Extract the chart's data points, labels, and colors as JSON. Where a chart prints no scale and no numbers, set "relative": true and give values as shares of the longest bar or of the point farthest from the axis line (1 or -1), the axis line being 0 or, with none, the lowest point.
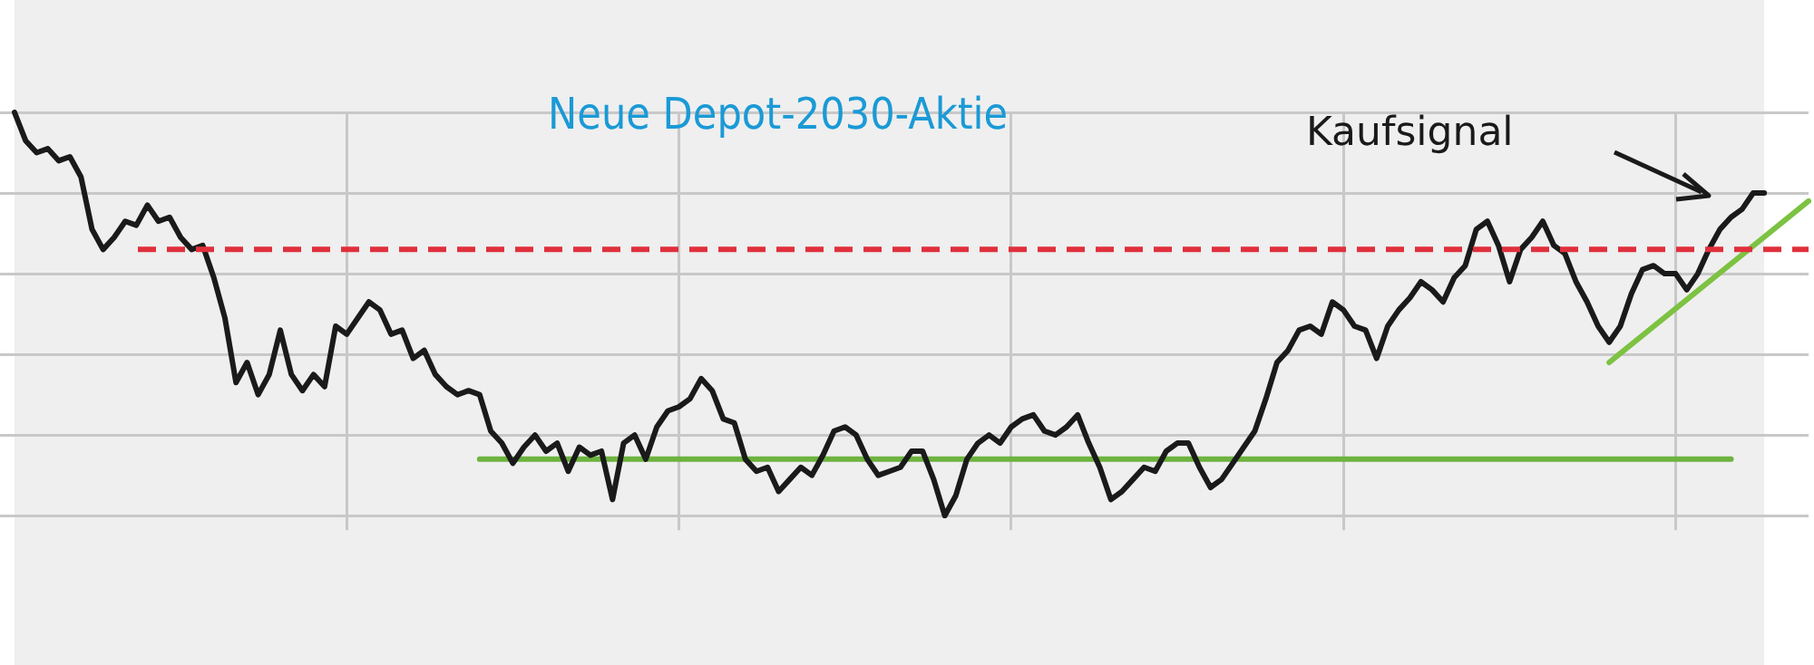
{
  "chart_data": {
    "type": "line",
    "title": "Neue Depot-2030-Aktie",
    "relative": true,
    "grid": true,
    "legend": false,
    "marker": "none",
    "annotations": [
      "Kaufsignal"
    ],
    "categories": [
      null,
      null,
      null,
      null,
      null,
      null,
      null,
      null,
      null,
      null,
      null,
      null,
      null,
      null,
      null,
      null,
      null,
      null,
      null,
      null,
      null,
      null,
      null,
      null,
      null,
      null,
      null,
      null,
      null,
      null,
      null,
      null,
      null,
      null,
      null,
      null,
      null,
      null,
      null,
      null,
      null,
      null,
      null,
      null,
      null,
      null,
      null,
      null,
      null,
      null,
      null,
      null,
      null,
      null,
      null,
      null,
      null,
      null,
      null,
      null,
      null,
      null,
      null,
      null,
      null,
      null,
      null,
      null,
      null,
      null,
      null,
      null,
      null,
      null,
      null,
      null,
      null,
      null,
      null,
      null,
      null,
      null,
      null,
      null,
      null,
      null,
      null,
      null,
      null,
      null,
      null,
      null,
      null,
      null,
      null,
      null,
      null,
      null,
      null,
      null,
      null,
      null,
      null,
      null,
      null,
      null,
      null,
      null,
      null,
      null,
      null,
      null,
      null,
      null,
      null,
      null,
      null,
      null,
      null,
      null,
      null,
      null,
      null,
      null,
      null,
      null,
      null,
      null,
      null,
      null,
      null,
      null,
      null,
      null,
      null,
      null,
      null,
      null,
      null,
      null,
      null,
      null,
      null,
      null,
      null,
      null,
      null,
      null,
      null,
      null,
      null,
      null,
      null,
      null,
      null,
      null,
      null,
      null,
      null,
      null,
      null,
      null,
      null
    ],
    "ref_lines": [
      {
        "axis": "y",
        "value": 0.66,
        "color": "#e0303c",
        "line_style": "dashed"
      }
    ],
    "series": [
      {
        "color": "#1a1a1a",
        "values": [
          1.0,
          0.93,
          0.9,
          0.91,
          0.88,
          0.89,
          0.84,
          0.71,
          0.66,
          0.69,
          0.73,
          0.72,
          0.77,
          0.73,
          0.74,
          0.69,
          0.66,
          0.67,
          0.59,
          0.49,
          0.33,
          0.38,
          0.3,
          0.35,
          0.46,
          0.35,
          0.31,
          0.35,
          0.32,
          0.47,
          0.45,
          0.49,
          0.53,
          0.51,
          0.45,
          0.46,
          0.39,
          0.41,
          0.35,
          0.32,
          0.3,
          0.31,
          0.3,
          0.21,
          0.18,
          0.13,
          0.17,
          0.2,
          0.16,
          0.18,
          0.11,
          0.17,
          0.15,
          0.16,
          0.04,
          0.18,
          0.2,
          0.14,
          0.22,
          0.26,
          0.27,
          0.29,
          0.34,
          0.31,
          0.24,
          0.23,
          0.14,
          0.11,
          0.12,
          0.06,
          0.09,
          0.12,
          0.1,
          0.15,
          0.21,
          0.22,
          0.2,
          0.14,
          0.1,
          0.11,
          0.12,
          0.16,
          0.16,
          0.09,
          0.0,
          0.05,
          0.14,
          0.18,
          0.2,
          0.18,
          0.22,
          0.24,
          0.25,
          0.21,
          0.2,
          0.22,
          0.25,
          0.18,
          0.12,
          0.04,
          0.06,
          0.09,
          0.12,
          0.11,
          0.16,
          0.18,
          0.18,
          0.12,
          0.07,
          0.09,
          0.13,
          0.17,
          0.21,
          0.29,
          0.38,
          0.41,
          0.46,
          0.47,
          0.45,
          0.53,
          0.51,
          0.47,
          0.46,
          0.39,
          0.47,
          0.51,
          0.54,
          0.58,
          0.56,
          0.53,
          0.59,
          0.62,
          0.71,
          0.73,
          0.67,
          0.58,
          0.66,
          0.69,
          0.73,
          0.67,
          0.65,
          0.58,
          0.53,
          0.47,
          0.43,
          0.47,
          0.55,
          0.61,
          0.62,
          0.6,
          0.6,
          0.56,
          0.6,
          0.66,
          0.71,
          0.74,
          0.76,
          0.8,
          0.8,
          null,
          null,
          null,
          null
        ]
      },
      {
        "color": "#6db33f",
        "values": [
          null,
          null,
          null,
          null,
          null,
          null,
          null,
          null,
          null,
          null,
          null,
          null,
          null,
          null,
          null,
          null,
          null,
          null,
          null,
          null,
          null,
          null,
          null,
          null,
          null,
          null,
          null,
          null,
          null,
          null,
          null,
          null,
          null,
          null,
          null,
          null,
          null,
          null,
          null,
          null,
          null,
          null,
          0.14,
          null,
          null,
          null,
          null,
          null,
          null,
          null,
          null,
          null,
          null,
          null,
          null,
          null,
          null,
          null,
          null,
          null,
          null,
          null,
          null,
          null,
          null,
          null,
          null,
          null,
          null,
          null,
          null,
          null,
          null,
          null,
          null,
          null,
          null,
          null,
          null,
          null,
          null,
          null,
          null,
          null,
          null,
          null,
          null,
          null,
          null,
          null,
          null,
          null,
          null,
          null,
          null,
          null,
          null,
          null,
          null,
          null,
          null,
          null,
          null,
          null,
          null,
          null,
          null,
          null,
          null,
          null,
          null,
          null,
          null,
          null,
          null,
          null,
          null,
          null,
          null,
          null,
          null,
          null,
          null,
          null,
          null,
          null,
          null,
          null,
          null,
          null,
          null,
          null,
          null,
          null,
          null,
          null,
          null,
          null,
          null,
          null,
          null,
          null,
          null,
          null,
          null,
          null,
          null,
          null,
          null,
          null,
          null,
          null,
          null,
          null,
          null,
          0.14,
          null,
          null,
          null,
          null,
          null,
          null,
          null
        ]
      },
      {
        "color": "#7dc242",
        "values": [
          null,
          null,
          null,
          null,
          null,
          null,
          null,
          null,
          null,
          null,
          null,
          null,
          null,
          null,
          null,
          null,
          null,
          null,
          null,
          null,
          null,
          null,
          null,
          null,
          null,
          null,
          null,
          null,
          null,
          null,
          null,
          null,
          null,
          null,
          null,
          null,
          null,
          null,
          null,
          null,
          null,
          null,
          null,
          null,
          null,
          null,
          null,
          null,
          null,
          null,
          null,
          null,
          null,
          null,
          null,
          null,
          null,
          null,
          null,
          null,
          null,
          null,
          null,
          null,
          null,
          null,
          null,
          null,
          null,
          null,
          null,
          null,
          null,
          null,
          null,
          null,
          null,
          null,
          null,
          null,
          null,
          null,
          null,
          null,
          null,
          null,
          null,
          null,
          null,
          null,
          null,
          null,
          null,
          null,
          null,
          null,
          null,
          null,
          null,
          null,
          null,
          null,
          null,
          null,
          null,
          null,
          null,
          null,
          null,
          null,
          null,
          null,
          null,
          null,
          null,
          null,
          null,
          null,
          null,
          null,
          null,
          null,
          null,
          null,
          null,
          null,
          null,
          null,
          null,
          null,
          null,
          null,
          null,
          null,
          null,
          null,
          null,
          null,
          null,
          null,
          null,
          null,
          null,
          null,
          0.38,
          null,
          null,
          null,
          null,
          null,
          null,
          null,
          null,
          null,
          null,
          null,
          null,
          null,
          null,
          null,
          null,
          null,
          0.78
        ]
      }
    ]
  }
}
